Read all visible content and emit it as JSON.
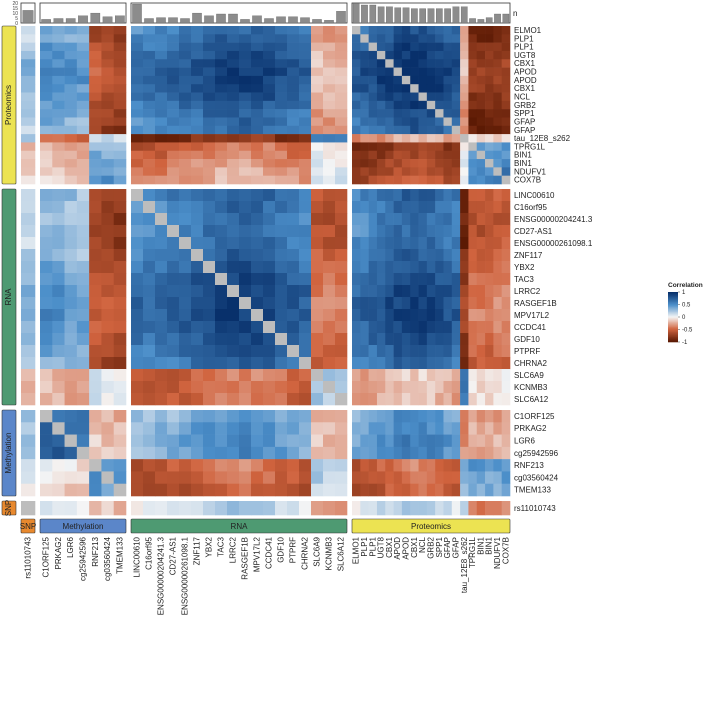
{
  "chart_data": {
    "type": "heatmap",
    "title": "",
    "n_axis": {
      "label": "n",
      "ticks": [
        "20",
        "15",
        "10",
        "5",
        "0"
      ]
    },
    "legend": {
      "title": "Correlation",
      "ticks": [
        "1",
        "0.5",
        "0",
        "-0.5",
        "-1"
      ],
      "position": "right"
    },
    "groups": [
      {
        "name": "SNP",
        "color": "#E8892E"
      },
      {
        "name": "Methylation",
        "color": "#5B86C9"
      },
      {
        "name": "RNA",
        "color": "#4E9A72"
      },
      {
        "name": "Proteomics",
        "color": "#ECE352"
      }
    ],
    "features": [
      {
        "label": "rs11010743",
        "group": "SNP",
        "cluster": 0,
        "n": 14
      },
      {
        "label": "C1ORF125",
        "group": "Methylation",
        "cluster": 1,
        "n": 4
      },
      {
        "label": "PRKAG2",
        "group": "Methylation",
        "cluster": 1,
        "n": 5
      },
      {
        "label": "LGR6",
        "group": "Methylation",
        "cluster": 1,
        "n": 5
      },
      {
        "label": "cg25942596",
        "group": "Methylation",
        "cluster": 1,
        "n": 8
      },
      {
        "label": "RNF213",
        "group": "Methylation",
        "cluster": 2,
        "n": 11
      },
      {
        "label": "cg03560424",
        "group": "Methylation",
        "cluster": 2,
        "n": 7
      },
      {
        "label": "TMEM133",
        "group": "Methylation",
        "cluster": 2,
        "n": 8
      },
      {
        "label": "LINC00610",
        "group": "RNA",
        "cluster": 3,
        "n": 21
      },
      {
        "label": "C16orf95",
        "group": "RNA",
        "cluster": 3,
        "n": 5
      },
      {
        "label": "ENSG00000204241.3",
        "group": "RNA",
        "cluster": 3,
        "n": 6
      },
      {
        "label": "CD27-AS1",
        "group": "RNA",
        "cluster": 3,
        "n": 6
      },
      {
        "label": "ENSG00000261098.1",
        "group": "RNA",
        "cluster": 3,
        "n": 5
      },
      {
        "label": "ZNF117",
        "group": "RNA",
        "cluster": 3,
        "n": 11
      },
      {
        "label": "YBX2",
        "group": "RNA",
        "cluster": 3,
        "n": 8
      },
      {
        "label": "TAC3",
        "group": "RNA",
        "cluster": 3,
        "n": 10
      },
      {
        "label": "LRRC2",
        "group": "RNA",
        "cluster": 3,
        "n": 10
      },
      {
        "label": "RASGEF1B",
        "group": "RNA",
        "cluster": 3,
        "n": 4
      },
      {
        "label": "MPV17L2",
        "group": "RNA",
        "cluster": 3,
        "n": 8
      },
      {
        "label": "CCDC41",
        "group": "RNA",
        "cluster": 3,
        "n": 5
      },
      {
        "label": "GDF10",
        "group": "RNA",
        "cluster": 3,
        "n": 7
      },
      {
        "label": "PTPRF",
        "group": "RNA",
        "cluster": 3,
        "n": 7
      },
      {
        "label": "CHRNA2",
        "group": "RNA",
        "cluster": 3,
        "n": 6
      },
      {
        "label": "SLC6A9",
        "group": "RNA",
        "cluster": 4,
        "n": 4
      },
      {
        "label": "KCNMB3",
        "group": "RNA",
        "cluster": 4,
        "n": 3
      },
      {
        "label": "SLC6A12",
        "group": "RNA",
        "cluster": 4,
        "n": 13
      },
      {
        "label": "ELMO1",
        "group": "Proteomics",
        "cluster": 5,
        "n": 22
      },
      {
        "label": "PLP1",
        "group": "Proteomics",
        "cluster": 5,
        "n": 20
      },
      {
        "label": "PLP1",
        "group": "Proteomics",
        "cluster": 5,
        "n": 20
      },
      {
        "label": "UGT8",
        "group": "Proteomics",
        "cluster": 5,
        "n": 18
      },
      {
        "label": "CBX1",
        "group": "Proteomics",
        "cluster": 5,
        "n": 18
      },
      {
        "label": "APOD",
        "group": "Proteomics",
        "cluster": 5,
        "n": 17
      },
      {
        "label": "APOD",
        "group": "Proteomics",
        "cluster": 5,
        "n": 17
      },
      {
        "label": "CBX1",
        "group": "Proteomics",
        "cluster": 5,
        "n": 16
      },
      {
        "label": "NCL",
        "group": "Proteomics",
        "cluster": 5,
        "n": 16
      },
      {
        "label": "GRB2",
        "group": "Proteomics",
        "cluster": 5,
        "n": 16
      },
      {
        "label": "SPP1",
        "group": "Proteomics",
        "cluster": 5,
        "n": 16
      },
      {
        "label": "GFAP",
        "group": "Proteomics",
        "cluster": 5,
        "n": 16
      },
      {
        "label": "GFAP",
        "group": "Proteomics",
        "cluster": 5,
        "n": 18
      },
      {
        "label": "tau_12E8_s262",
        "group": "Proteomics",
        "cluster": 6,
        "n": 18
      },
      {
        "label": "TPRG1L",
        "group": "Proteomics",
        "cluster": 7,
        "n": 5
      },
      {
        "label": "BIN1",
        "group": "Proteomics",
        "cluster": 7,
        "n": 4
      },
      {
        "label": "BIN1",
        "group": "Proteomics",
        "cluster": 7,
        "n": 6
      },
      {
        "label": "NDUFV1",
        "group": "Proteomics",
        "cluster": 7,
        "n": 10
      },
      {
        "label": "COX7B",
        "group": "Proteomics",
        "cluster": 7,
        "n": 10
      }
    ],
    "cluster_sign": [
      0,
      -1,
      1,
      -1,
      1,
      1,
      -1,
      -1
    ],
    "cluster_correlation": [
      [
        1.0,
        0.05,
        -0.1,
        0.1,
        -0.2,
        0.1,
        0.2,
        -0.3
      ],
      [
        0.05,
        0.55,
        -0.2,
        0.3,
        -0.2,
        0.35,
        -0.4,
        -0.25
      ],
      [
        -0.1,
        -0.2,
        0.5,
        -0.6,
        0.25,
        -0.6,
        0.3,
        0.45
      ],
      [
        0.1,
        0.3,
        -0.6,
        0.7,
        -0.4,
        0.7,
        -0.75,
        -0.4
      ],
      [
        -0.2,
        -0.2,
        0.25,
        -0.4,
        0.45,
        -0.15,
        0.8,
        0.15
      ],
      [
        0.1,
        0.35,
        -0.6,
        0.7,
        -0.15,
        0.8,
        -0.2,
        -0.75
      ],
      [
        0.2,
        -0.4,
        0.3,
        -0.75,
        0.8,
        -0.2,
        1.0,
        0.1
      ],
      [
        -0.3,
        -0.25,
        0.45,
        -0.4,
        0.15,
        -0.75,
        0.1,
        0.6
      ]
    ],
    "diagonal_color": "#BDBDBD",
    "colors": {
      "high": "#08306B",
      "mid_high": "#4B8EC9",
      "zero": "#F5F5F5",
      "mid_low": "#D0633E",
      "low": "#5C1A04"
    }
  }
}
